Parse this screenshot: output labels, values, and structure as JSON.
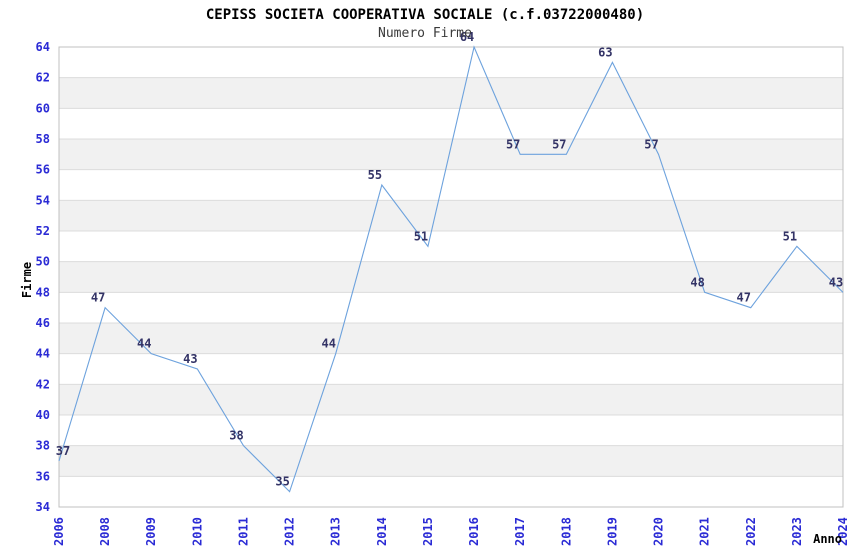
{
  "page": {
    "background": "#ffffff"
  },
  "chart_data": {
    "type": "line",
    "title": "CEPISS SOCIETA COOPERATIVA SOCIALE (c.f.03722000480)",
    "subtitle": "Numero Firme",
    "xlabel": "Anno",
    "ylabel": "Firme",
    "categories": [
      "2006",
      "2008",
      "2009",
      "2010",
      "2011",
      "2012",
      "2013",
      "2014",
      "2015",
      "2016",
      "2017",
      "2018",
      "2019",
      "2020",
      "2021",
      "2022",
      "2023",
      "2024"
    ],
    "values": [
      37,
      47,
      44,
      43,
      38,
      35,
      44,
      55,
      51,
      64,
      57,
      57,
      63,
      57,
      48,
      47,
      51,
      43
    ],
    "last_point_plotted_at": 48,
    "ylim": [
      34,
      64
    ],
    "ytick_step": 2,
    "grid": "horizontal-bands",
    "legend": "none",
    "colors": {
      "line": "#6da2dd",
      "tick_labels": "#2b2bd5",
      "point_labels": "#333366",
      "band_alt": "#f1f1f1",
      "band_main": "#ffffff",
      "gridline": "#dcdcdc",
      "border": "#c0c0c0",
      "title": "#000000",
      "subtitle": "#3a3a3a",
      "axis_titles": "#000000"
    }
  }
}
